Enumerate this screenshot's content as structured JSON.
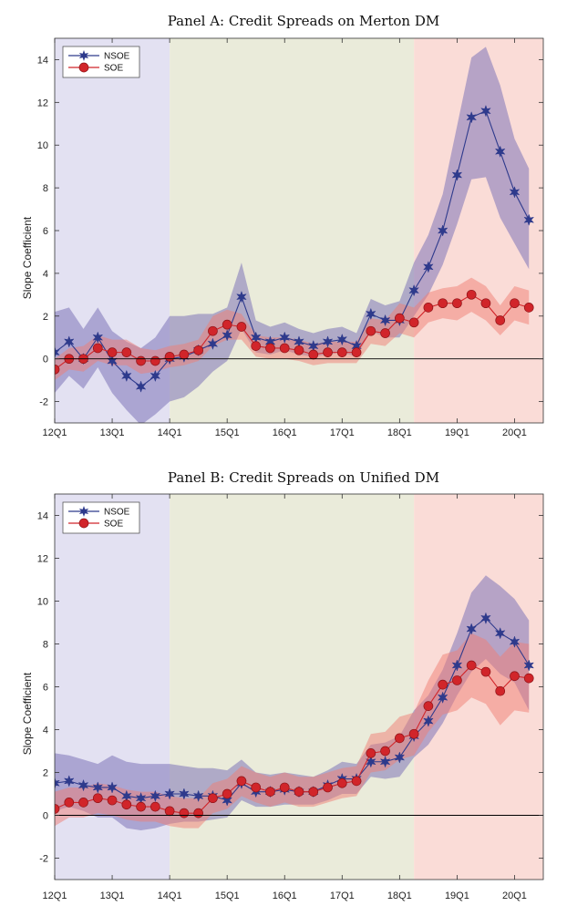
{
  "colors": {
    "regime1_bg": "#e3e1f2",
    "regime2_bg": "#eaebda",
    "regime3_bg": "#fadcd7",
    "nsoe": "#2e3a8c",
    "soe": "#d1252a",
    "nsoe_band": "#7d75b8",
    "soe_band": "#ef7e74"
  },
  "chart_data": [
    {
      "type": "line",
      "title": "Panel A: Credit Spreads on Merton DM",
      "ylabel": "Slope Coefficient",
      "ylim": [
        -3,
        15
      ],
      "yticks": [
        "-2",
        "0",
        "2",
        "4",
        "6",
        "8",
        "10",
        "12",
        "14"
      ],
      "ytick_values": [
        -2,
        0,
        2,
        4,
        6,
        8,
        10,
        12,
        14
      ],
      "xticks": [
        "12Q1",
        "13Q1",
        "14Q1",
        "15Q1",
        "16Q1",
        "17Q1",
        "18Q1",
        "19Q1",
        "20Q1"
      ],
      "x_start": "12Q1",
      "x_end": "20Q3",
      "regimes": [
        [
          "12Q1",
          "14Q1"
        ],
        [
          "14Q1",
          "18Q2"
        ],
        [
          "18Q2",
          "20Q3"
        ]
      ],
      "legend": "top-left",
      "series": [
        {
          "name": "NSOE",
          "marker": "star",
          "values": [
            0.3,
            0.8,
            0.0,
            1.0,
            -0.1,
            -0.8,
            -1.3,
            -0.8,
            0.0,
            0.1,
            0.4,
            0.7,
            1.1,
            2.9,
            1.0,
            0.8,
            1.0,
            0.8,
            0.6,
            0.8,
            0.9,
            0.6,
            2.1,
            1.8,
            1.8,
            3.2,
            4.3,
            6.0,
            8.6,
            11.3,
            11.6,
            9.7,
            7.8,
            6.5
          ],
          "lower": [
            -1.6,
            -0.8,
            -1.4,
            -0.4,
            -1.6,
            -2.4,
            -3.1,
            -2.6,
            -2.0,
            -1.8,
            -1.3,
            -0.6,
            -0.1,
            1.4,
            0.3,
            0.2,
            0.4,
            0.2,
            0.1,
            0.2,
            0.3,
            0.1,
            1.3,
            1.0,
            1.0,
            2.0,
            3.0,
            4.4,
            6.3,
            8.4,
            8.5,
            6.6,
            5.4,
            4.2
          ],
          "upper": [
            2.2,
            2.4,
            1.4,
            2.4,
            1.3,
            0.8,
            0.5,
            1.0,
            2.0,
            2.0,
            2.1,
            2.1,
            2.4,
            4.5,
            1.8,
            1.5,
            1.7,
            1.4,
            1.2,
            1.4,
            1.5,
            1.2,
            2.8,
            2.5,
            2.7,
            4.5,
            5.8,
            7.7,
            10.9,
            14.1,
            14.6,
            12.8,
            10.3,
            8.9
          ]
        },
        {
          "name": "SOE",
          "marker": "circle",
          "values": [
            -0.5,
            0.0,
            0.0,
            0.5,
            0.3,
            0.3,
            -0.1,
            -0.1,
            0.1,
            0.2,
            0.4,
            1.3,
            1.6,
            1.5,
            0.6,
            0.5,
            0.5,
            0.4,
            0.2,
            0.3,
            0.3,
            0.3,
            1.3,
            1.2,
            1.9,
            1.7,
            2.4,
            2.6,
            2.6,
            3.0,
            2.6,
            1.8,
            2.6,
            2.4
          ],
          "lower": [
            -1.0,
            -0.5,
            -0.6,
            -0.1,
            -0.3,
            -0.3,
            -0.7,
            -0.6,
            -0.4,
            -0.3,
            -0.1,
            0.6,
            0.9,
            0.9,
            0.1,
            0.0,
            0.0,
            -0.1,
            -0.3,
            -0.2,
            -0.2,
            -0.2,
            0.7,
            0.6,
            1.2,
            1.0,
            1.7,
            1.9,
            1.8,
            2.2,
            1.8,
            1.1,
            1.8,
            1.6
          ],
          "upper": [
            0.0,
            0.5,
            0.6,
            1.1,
            0.9,
            0.9,
            0.5,
            0.4,
            0.6,
            0.7,
            0.9,
            2.0,
            2.3,
            2.1,
            1.1,
            1.0,
            1.0,
            0.9,
            0.7,
            0.8,
            0.8,
            0.8,
            1.9,
            1.8,
            2.6,
            2.4,
            3.1,
            3.3,
            3.4,
            3.8,
            3.4,
            2.5,
            3.4,
            3.2
          ]
        }
      ]
    },
    {
      "type": "line",
      "title": "Panel B: Credit Spreads on Unified DM",
      "ylabel": "Slope Coefficient",
      "ylim": [
        -3,
        15
      ],
      "yticks": [
        "-2",
        "0",
        "2",
        "4",
        "6",
        "8",
        "10",
        "12",
        "14"
      ],
      "ytick_values": [
        -2,
        0,
        2,
        4,
        6,
        8,
        10,
        12,
        14
      ],
      "xticks": [
        "12Q1",
        "13Q1",
        "14Q1",
        "15Q1",
        "16Q1",
        "17Q1",
        "18Q1",
        "19Q1",
        "20Q1"
      ],
      "x_start": "12Q1",
      "x_end": "20Q3",
      "regimes": [
        [
          "12Q1",
          "14Q1"
        ],
        [
          "14Q1",
          "18Q2"
        ],
        [
          "18Q2",
          "20Q3"
        ]
      ],
      "legend": "top-left",
      "series": [
        {
          "name": "NSOE",
          "marker": "star",
          "values": [
            1.5,
            1.6,
            1.4,
            1.3,
            1.3,
            0.9,
            0.8,
            0.9,
            1.0,
            1.0,
            0.9,
            0.9,
            0.7,
            1.5,
            1.1,
            1.1,
            1.2,
            1.1,
            1.1,
            1.4,
            1.7,
            1.7,
            2.5,
            2.5,
            2.7,
            3.7,
            4.4,
            5.5,
            7.0,
            8.7,
            9.2,
            8.5,
            8.1,
            7.0
          ],
          "lower": [
            0.2,
            0.4,
            0.2,
            -0.1,
            -0.1,
            -0.6,
            -0.7,
            -0.6,
            -0.4,
            -0.3,
            -0.3,
            -0.2,
            -0.1,
            0.7,
            0.4,
            0.4,
            0.5,
            0.5,
            0.5,
            0.7,
            1.0,
            1.0,
            1.8,
            1.7,
            1.8,
            2.7,
            3.3,
            4.3,
            5.6,
            6.7,
            7.3,
            6.6,
            6.2,
            4.9
          ],
          "upper": [
            2.9,
            2.8,
            2.6,
            2.4,
            2.8,
            2.5,
            2.4,
            2.4,
            2.4,
            2.3,
            2.2,
            2.2,
            2.1,
            2.6,
            2.0,
            1.9,
            2.0,
            1.9,
            1.8,
            2.1,
            2.5,
            2.4,
            3.3,
            3.4,
            3.7,
            4.9,
            5.6,
            6.8,
            8.5,
            10.4,
            11.2,
            10.7,
            10.1,
            9.1
          ]
        },
        {
          "name": "SOE",
          "marker": "circle",
          "values": [
            0.3,
            0.6,
            0.6,
            0.8,
            0.7,
            0.5,
            0.4,
            0.4,
            0.2,
            0.1,
            0.1,
            0.8,
            1.0,
            1.6,
            1.3,
            1.1,
            1.3,
            1.1,
            1.1,
            1.3,
            1.5,
            1.6,
            2.9,
            3.0,
            3.6,
            3.8,
            5.1,
            6.1,
            6.3,
            7.0,
            6.7,
            5.8,
            6.5,
            6.4
          ],
          "lower": [
            -0.5,
            -0.1,
            -0.1,
            0.1,
            0.0,
            -0.2,
            -0.3,
            -0.3,
            -0.5,
            -0.6,
            -0.6,
            0.1,
            0.3,
            0.9,
            0.6,
            0.4,
            0.6,
            0.4,
            0.4,
            0.6,
            0.8,
            0.9,
            2.0,
            2.1,
            2.6,
            2.8,
            3.9,
            4.7,
            4.9,
            5.5,
            5.2,
            4.2,
            4.9,
            4.8
          ],
          "upper": [
            1.1,
            1.3,
            1.3,
            1.5,
            1.4,
            1.2,
            1.1,
            1.1,
            0.9,
            0.8,
            0.8,
            1.5,
            1.7,
            2.3,
            2.0,
            1.8,
            2.0,
            1.8,
            1.8,
            2.0,
            2.2,
            2.3,
            3.8,
            3.9,
            4.6,
            4.8,
            6.3,
            7.5,
            7.7,
            8.5,
            8.2,
            7.4,
            8.1,
            8.0
          ]
        }
      ]
    }
  ]
}
